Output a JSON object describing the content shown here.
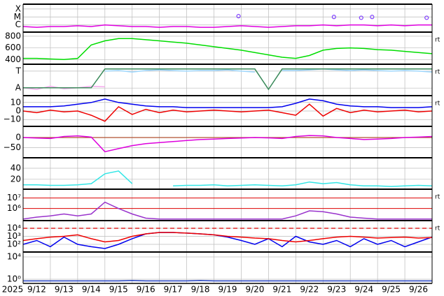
{
  "x_axis": {
    "xlim": [
      0,
      15
    ],
    "xticks": [
      0,
      1,
      2,
      3,
      4,
      5,
      6,
      7,
      8,
      9,
      10,
      11,
      12,
      13,
      14,
      15
    ],
    "year": "2025",
    "day_labels": [
      "9/12",
      "9/13",
      "9/14",
      "9/15",
      "9/16",
      "9/17",
      "9/18",
      "9/19",
      "9/20",
      "9/21",
      "9/22",
      "9/23",
      "9/24",
      "9/25",
      "9/26"
    ],
    "x": [
      0,
      0.5,
      1,
      1.5,
      2,
      2.5,
      3,
      3.5,
      4,
      4.5,
      5,
      5.5,
      6,
      6.5,
      7,
      7.5,
      8,
      8.5,
      9,
      9.5,
      10,
      10.5,
      11,
      11.5,
      12,
      12.5,
      13,
      13.5,
      14,
      14.5,
      15
    ]
  },
  "chart_data": [
    {
      "type": "line",
      "ylim": [
        -6.9,
        -3.4
      ],
      "yticks": [
        {
          "value": -4,
          "label": "X"
        },
        {
          "value": -5,
          "label": "M"
        },
        {
          "value": -6,
          "label": "C"
        }
      ],
      "series": [
        {
          "color": "#e000e0",
          "values": [
            -6.2,
            -6.3,
            -6.2,
            -6.2,
            -6.1,
            -6.2,
            -6.0,
            -6.1,
            -6.2,
            -6.2,
            -6.3,
            -6.2,
            -6.2,
            -6.3,
            -6.3,
            -6.2,
            -6.1,
            -6.2,
            -6.3,
            -6.2,
            -6.1,
            -6.1,
            -6.0,
            -6.1,
            -6.0,
            -6.0,
            -6.1,
            -6.0,
            -6.1,
            -6.0,
            -6.0
          ]
        },
        {
          "color": "#8040ff",
          "marker": "circle",
          "x": [
            7.9,
            11.4,
            12.4,
            12.8,
            14.8
          ],
          "values": [
            -4.9,
            -5.0,
            -5.1,
            -5.0,
            -5.1
          ]
        }
      ]
    },
    {
      "type": "line",
      "ylim": [
        320,
        870
      ],
      "yticks": [
        400,
        600,
        800
      ],
      "annotation": "rt",
      "series": [
        {
          "color": "#00dd00",
          "values": [
            420,
            420,
            410,
            400,
            420,
            650,
            720,
            760,
            760,
            740,
            720,
            700,
            680,
            650,
            620,
            590,
            560,
            520,
            480,
            440,
            420,
            470,
            560,
            590,
            600,
            590,
            570,
            560,
            540,
            520,
            500
          ]
        }
      ]
    },
    {
      "type": "line",
      "ylim": [
        0,
        1
      ],
      "yticks": [
        {
          "value": 0.78,
          "label": "T"
        },
        {
          "value": 0.24,
          "label": "A"
        }
      ],
      "annotation": "rt",
      "series": [
        {
          "color": "#9fd8ff",
          "values": [
            null,
            null,
            null,
            null,
            null,
            null,
            0.78,
            0.8,
            0.75,
            0.8,
            0.82,
            0.8,
            0.78,
            0.8,
            0.8,
            0.82,
            0.78,
            0.75,
            null,
            0.8,
            0.8,
            0.82,
            0.85,
            0.82,
            0.8,
            0.82,
            0.8,
            0.78,
            0.8,
            0.78,
            0.75
          ]
        },
        {
          "color": "#f7a8ee",
          "values": [
            0.25,
            0.2,
            0.3,
            0.22,
            0.25,
            0.3,
            0.28,
            null,
            null,
            null,
            null,
            null,
            null,
            null,
            null,
            null,
            null,
            null,
            null,
            null,
            null,
            null,
            null,
            null,
            null,
            null,
            null,
            null,
            null,
            null,
            null
          ]
        },
        {
          "color": "#3a8a5a",
          "values": [
            0.25,
            0.25,
            0.25,
            0.25,
            0.25,
            0.25,
            0.85,
            0.85,
            0.85,
            0.85,
            0.85,
            0.85,
            0.85,
            0.85,
            0.85,
            0.85,
            0.85,
            0.85,
            0.2,
            0.85,
            0.85,
            0.85,
            0.85,
            0.85,
            0.85,
            0.85,
            0.85,
            0.85,
            0.85,
            0.85,
            0.85
          ]
        }
      ]
    },
    {
      "type": "line",
      "ylim": [
        -18,
        18
      ],
      "yticks": [
        10,
        0,
        {
          "value": -10,
          "label": "−10"
        }
      ],
      "annotation": "rt",
      "series": [
        {
          "color": "#0000ee",
          "values": [
            5,
            5,
            5,
            6,
            8,
            10,
            14,
            10,
            8,
            6,
            5,
            5,
            4,
            4,
            4,
            4,
            4,
            4,
            4,
            5,
            9,
            14,
            12,
            8,
            6,
            5,
            5,
            4,
            4,
            4,
            5
          ]
        },
        {
          "color": "#ee0000",
          "values": [
            0,
            -2,
            1,
            -1,
            0,
            -5,
            -12,
            5,
            -4,
            2,
            -2,
            1,
            -1,
            0,
            1,
            0,
            -1,
            0,
            1,
            -2,
            -5,
            8,
            -6,
            3,
            -2,
            1,
            -1,
            0,
            1,
            -1,
            0
          ]
        }
      ]
    },
    {
      "type": "line",
      "ylim": [
        -100,
        55
      ],
      "yticks": [
        0,
        {
          "value": -50,
          "label": "−50"
        }
      ],
      "hline": {
        "value": 0,
        "color": "#b05030"
      },
      "series": [
        {
          "color": "#dd00dd",
          "values": [
            0,
            -3,
            -5,
            5,
            8,
            2,
            -70,
            -55,
            -40,
            -30,
            -25,
            -20,
            -15,
            -10,
            -8,
            -5,
            -3,
            0,
            -2,
            -5,
            5,
            10,
            8,
            0,
            -5,
            -10,
            -8,
            -5,
            0,
            2,
            5
          ]
        }
      ]
    },
    {
      "type": "line",
      "ylim": [
        2,
        59
      ],
      "yticks": [
        20,
        40
      ],
      "series": [
        {
          "color": "#33e6e6",
          "values": [
            10,
            10,
            9,
            9,
            10,
            12,
            30,
            35,
            12,
            null,
            null,
            8,
            9,
            9,
            10,
            8,
            9,
            10,
            9,
            8,
            10,
            15,
            12,
            14,
            10,
            8,
            8,
            7,
            8,
            9,
            8
          ]
        }
      ]
    },
    {
      "type": "line",
      "log": true,
      "ylim": [
        70000,
        70000000
      ],
      "grid_color": "#dd0000",
      "annotation": "rt",
      "yticks": [
        {
          "value": 10000000,
          "label": "10⁷"
        },
        {
          "value": 1000000,
          "label": "10⁶"
        }
      ],
      "series": [
        {
          "color": "#9933cc",
          "values": [
            100000,
            150000,
            200000,
            300000,
            200000,
            300000,
            4000000,
            1000000,
            300000,
            120000,
            100000,
            100000,
            100000,
            100000,
            100000,
            100000,
            100000,
            100000,
            100000,
            100000,
            200000,
            600000,
            500000,
            300000,
            150000,
            120000,
            100000,
            100000,
            100000,
            100000,
            100000
          ]
        }
      ]
    },
    {
      "type": "line",
      "log": true,
      "ylim": [
        11,
        90000
      ],
      "annotation": "rt",
      "hline": {
        "value": 10000,
        "color": "#dd0000",
        "dashed": true
      },
      "yticks": [
        {
          "value": 10000,
          "label": "10⁴"
        },
        {
          "value": 1000,
          "label": "10³"
        },
        {
          "value": 100,
          "label": "10²"
        }
      ],
      "series": [
        {
          "color": "#0000ee",
          "values": [
            100,
            300,
            50,
            800,
            100,
            50,
            30,
            100,
            500,
            2000,
            3000,
            3000,
            2500,
            2000,
            1500,
            800,
            300,
            100,
            500,
            50,
            1000,
            200,
            100,
            300,
            50,
            500,
            100,
            300,
            50,
            200,
            800
          ]
        },
        {
          "color": "#ee0000",
          "values": [
            300,
            500,
            800,
            1000,
            1500,
            500,
            200,
            300,
            1000,
            2000,
            3000,
            3000,
            2500,
            2000,
            1500,
            1000,
            800,
            600,
            500,
            300,
            200,
            300,
            500,
            800,
            1000,
            800,
            600,
            700,
            800,
            600,
            700
          ]
        }
      ]
    },
    {
      "type": "line",
      "log": true,
      "ylim": [
        0.18,
        75000
      ],
      "yticks": [
        {
          "value": 10000,
          "label": "10⁴"
        },
        {
          "value": 1,
          "label": "10⁰"
        }
      ],
      "series": [
        {
          "color": "#2040c0",
          "values": [
            0.5,
            0.5,
            0.5,
            0.5,
            0.5,
            0.5,
            0.5,
            0.5,
            0.6,
            0.5,
            0.5,
            0.5,
            0.5,
            0.6,
            0.5,
            0.5,
            0.5,
            0.5,
            0.5,
            0.5,
            0.5,
            0.5,
            0.5,
            0.5,
            0.5,
            0.5,
            0.5,
            0.5,
            0.5,
            0.5,
            0.5
          ]
        }
      ]
    }
  ]
}
